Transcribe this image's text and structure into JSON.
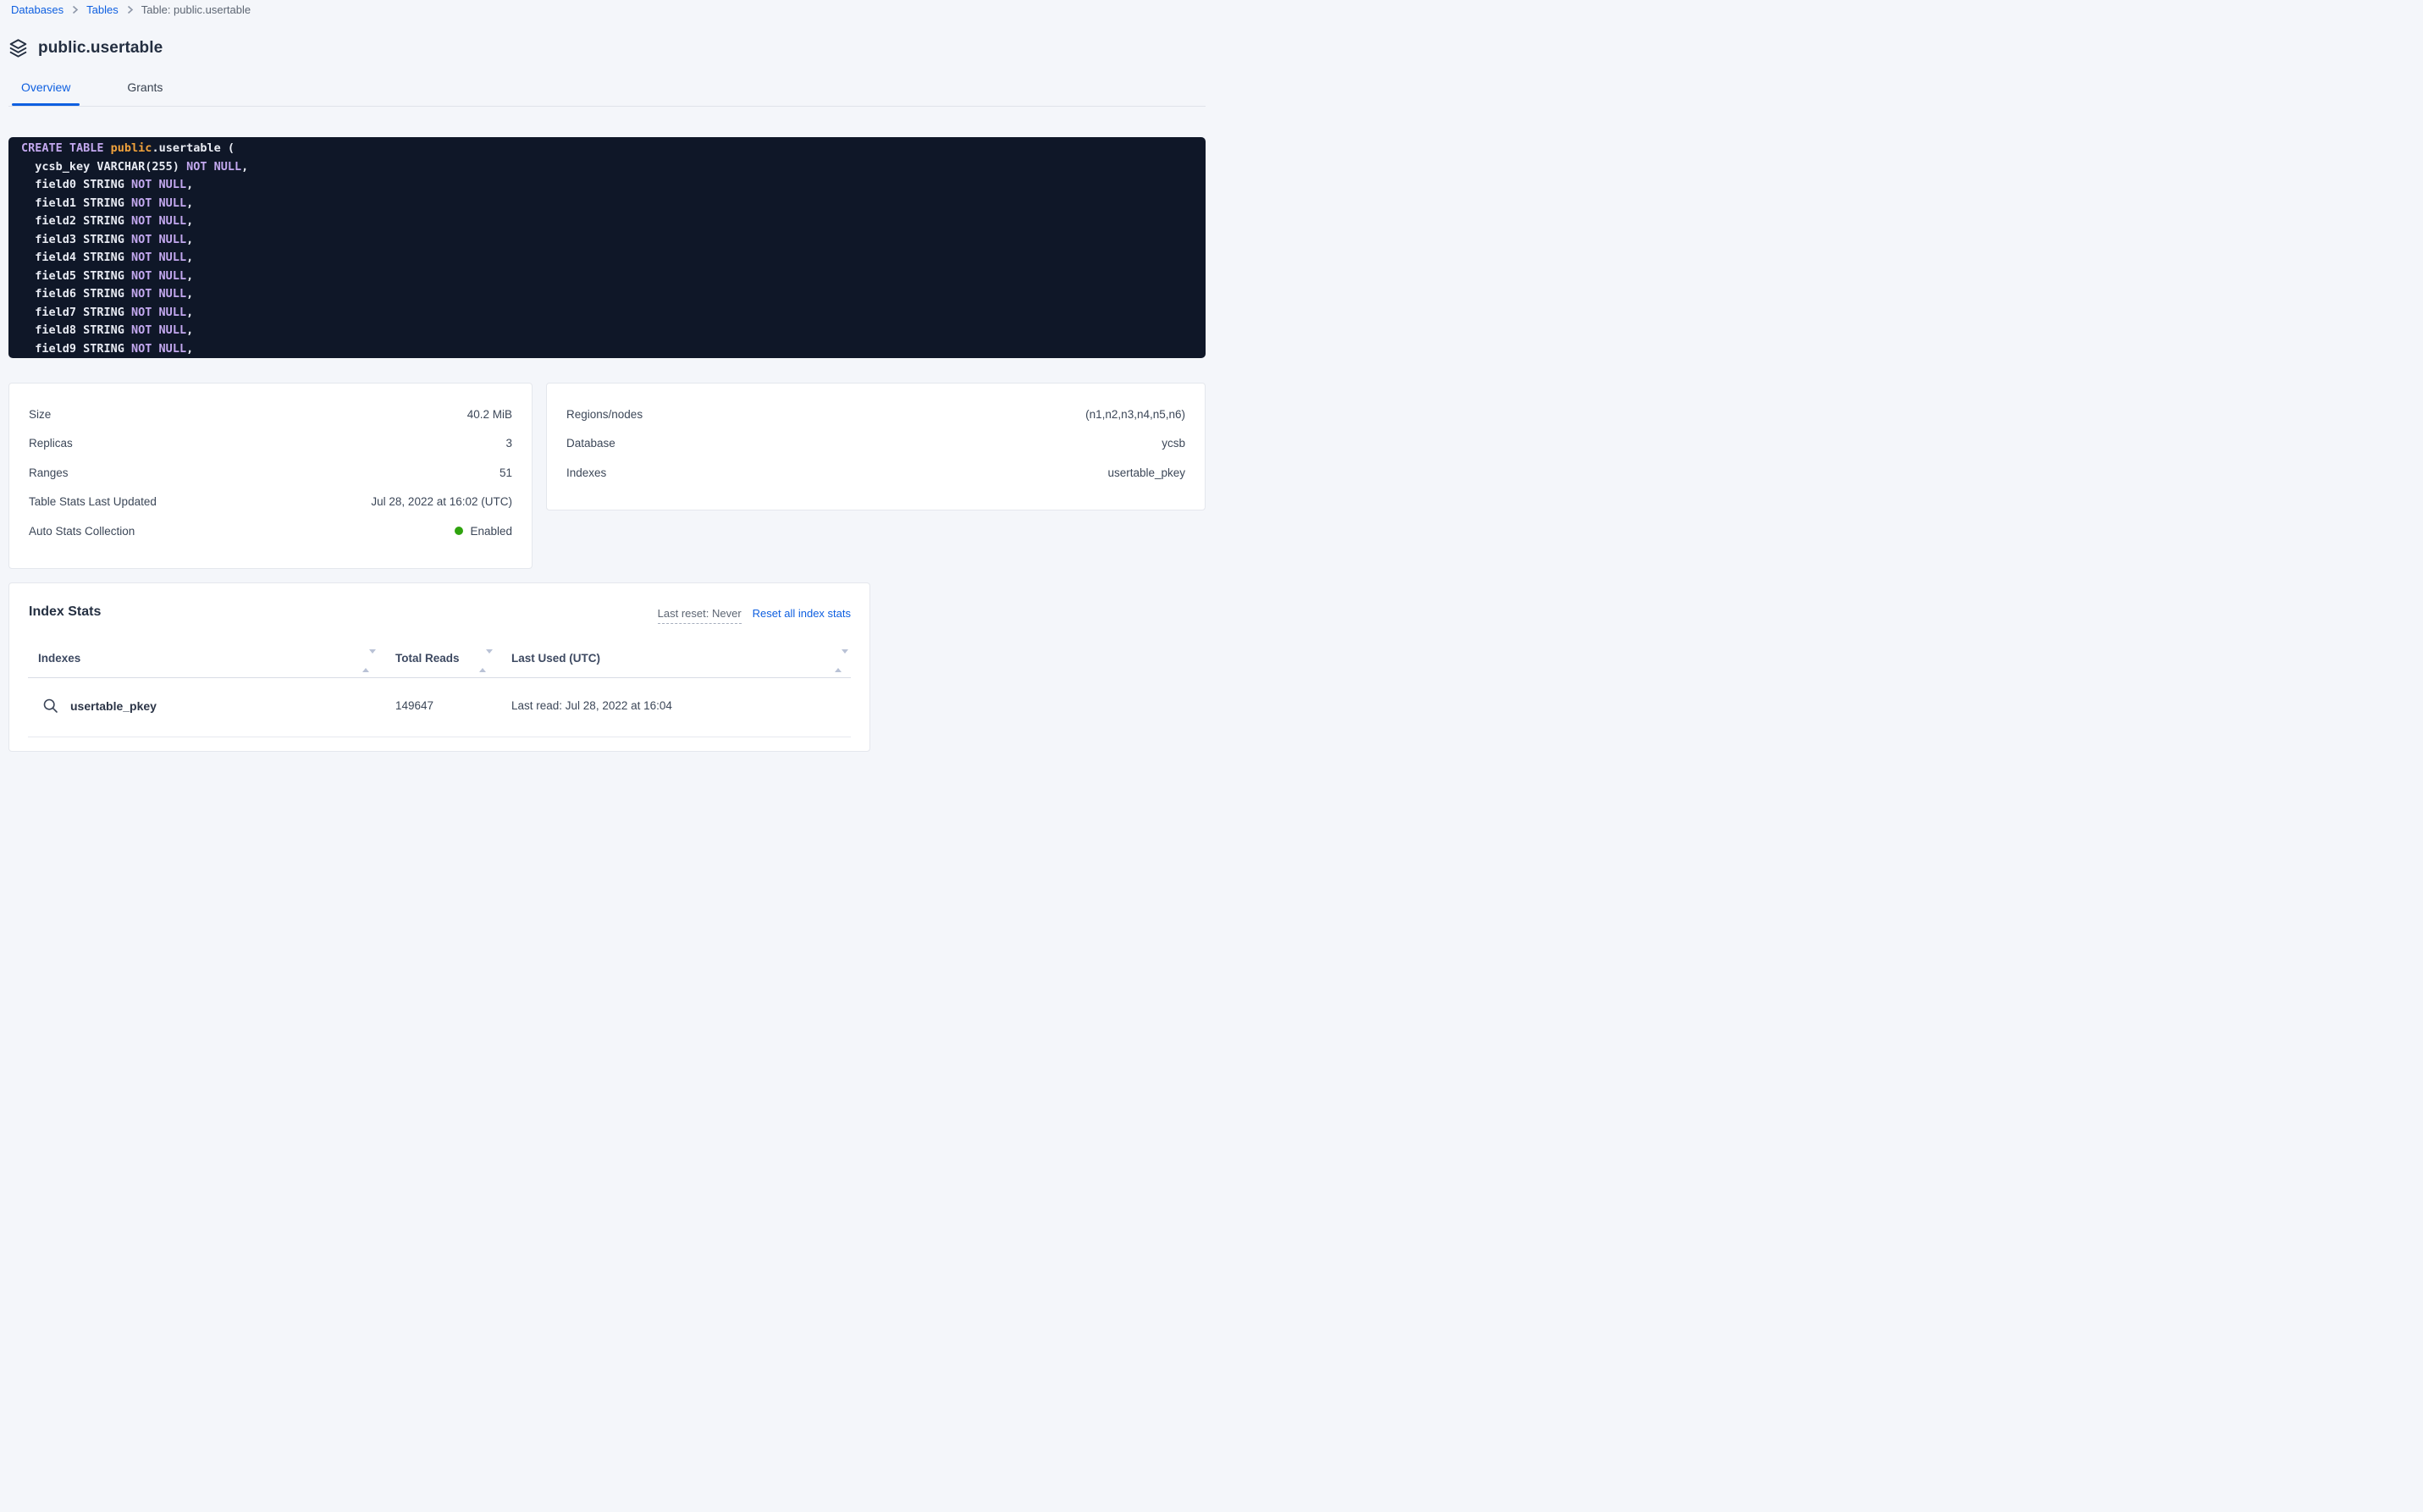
{
  "colors": {
    "accent_blue": "#0e5fe0",
    "status_green": "#2fa30e",
    "code_background": "#0f1728",
    "code_keyword": "#c3a8ef",
    "code_literal": "#f0a23c",
    "code_text": "#e8ebf3"
  },
  "breadcrumb": {
    "items": [
      "Databases",
      "Tables",
      "Table: public.usertable"
    ]
  },
  "header": {
    "title": "public.usertable",
    "icon": "layers-icon"
  },
  "tabs": [
    {
      "label": "Overview",
      "active": true
    },
    {
      "label": "Grants",
      "active": false
    }
  ],
  "sql": {
    "lines": [
      [
        {
          "c": "kw",
          "t": "CREATE TABLE "
        },
        {
          "c": "str",
          "t": "public"
        },
        {
          "c": "pl",
          "t": ".usertable ("
        }
      ],
      [
        {
          "c": "pl",
          "t": "  ycsb_key VARCHAR(255) "
        },
        {
          "c": "kw",
          "t": "NOT NULL"
        },
        {
          "c": "pl",
          "t": ","
        }
      ],
      [
        {
          "c": "pl",
          "t": "  field0 STRING "
        },
        {
          "c": "kw",
          "t": "NOT NULL"
        },
        {
          "c": "pl",
          "t": ","
        }
      ],
      [
        {
          "c": "pl",
          "t": "  field1 STRING "
        },
        {
          "c": "kw",
          "t": "NOT NULL"
        },
        {
          "c": "pl",
          "t": ","
        }
      ],
      [
        {
          "c": "pl",
          "t": "  field2 STRING "
        },
        {
          "c": "kw",
          "t": "NOT NULL"
        },
        {
          "c": "pl",
          "t": ","
        }
      ],
      [
        {
          "c": "pl",
          "t": "  field3 STRING "
        },
        {
          "c": "kw",
          "t": "NOT NULL"
        },
        {
          "c": "pl",
          "t": ","
        }
      ],
      [
        {
          "c": "pl",
          "t": "  field4 STRING "
        },
        {
          "c": "kw",
          "t": "NOT NULL"
        },
        {
          "c": "pl",
          "t": ","
        }
      ],
      [
        {
          "c": "pl",
          "t": "  field5 STRING "
        },
        {
          "c": "kw",
          "t": "NOT NULL"
        },
        {
          "c": "pl",
          "t": ","
        }
      ],
      [
        {
          "c": "pl",
          "t": "  field6 STRING "
        },
        {
          "c": "kw",
          "t": "NOT NULL"
        },
        {
          "c": "pl",
          "t": ","
        }
      ],
      [
        {
          "c": "pl",
          "t": "  field7 STRING "
        },
        {
          "c": "kw",
          "t": "NOT NULL"
        },
        {
          "c": "pl",
          "t": ","
        }
      ],
      [
        {
          "c": "pl",
          "t": "  field8 STRING "
        },
        {
          "c": "kw",
          "t": "NOT NULL"
        },
        {
          "c": "pl",
          "t": ","
        }
      ],
      [
        {
          "c": "pl",
          "t": "  field9 STRING "
        },
        {
          "c": "kw",
          "t": "NOT NULL"
        },
        {
          "c": "pl",
          "t": ","
        }
      ]
    ]
  },
  "summary_left": {
    "rows": [
      {
        "label": "Size",
        "value": "40.2 MiB"
      },
      {
        "label": "Replicas",
        "value": "3"
      },
      {
        "label": "Ranges",
        "value": "51"
      },
      {
        "label": "Table Stats Last Updated",
        "value": "Jul 28, 2022 at 16:02 (UTC)"
      },
      {
        "label": "Auto Stats Collection",
        "value": "Enabled",
        "status": "green"
      }
    ]
  },
  "summary_right": {
    "rows": [
      {
        "label": "Regions/nodes",
        "value": "(n1,n2,n3,n4,n5,n6)"
      },
      {
        "label": "Database",
        "value": "ycsb"
      },
      {
        "label": "Indexes",
        "value": "usertable_pkey"
      }
    ]
  },
  "index_stats": {
    "title": "Index Stats",
    "last_reset_label": "Last reset: Never",
    "reset_link": "Reset all index stats",
    "columns": [
      "Indexes",
      "Total Reads",
      "Last Used (UTC)"
    ],
    "rows": [
      {
        "name": "usertable_pkey",
        "total_reads": "149647",
        "last_used": "Last read: Jul 28, 2022 at 16:04"
      }
    ]
  }
}
